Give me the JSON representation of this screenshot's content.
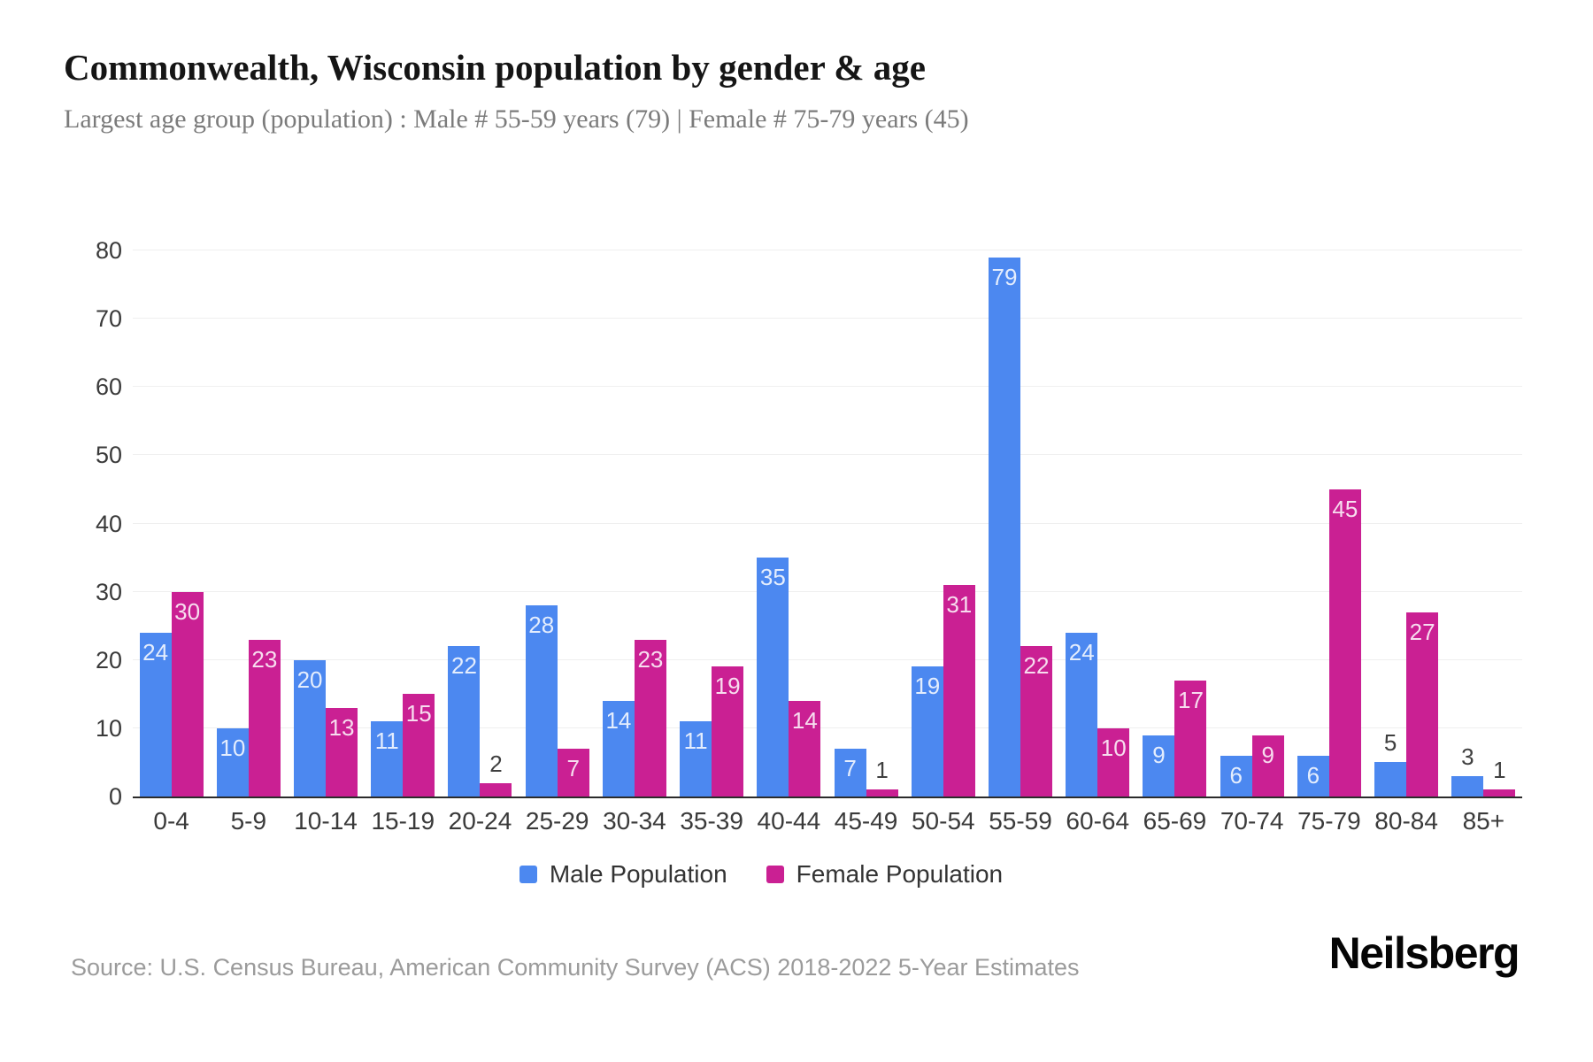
{
  "header": {
    "title": "Commonwealth, Wisconsin population by gender & age",
    "subtitle": "Largest age group (population) : Male # 55-59 years (79) | Female # 75-79 years (45)"
  },
  "chart_data": {
    "type": "bar",
    "title": "Commonwealth, Wisconsin population by gender & age",
    "categories": [
      "0-4",
      "5-9",
      "10-14",
      "15-19",
      "20-24",
      "25-29",
      "30-34",
      "35-39",
      "40-44",
      "45-49",
      "50-54",
      "55-59",
      "60-64",
      "65-69",
      "70-74",
      "75-79",
      "80-84",
      "85+"
    ],
    "series": [
      {
        "name": "Male Population",
        "color": "#4c88f0",
        "values": [
          24,
          10,
          20,
          11,
          22,
          28,
          14,
          11,
          35,
          7,
          19,
          79,
          24,
          9,
          6,
          6,
          5,
          3
        ]
      },
      {
        "name": "Female Population",
        "color": "#ca2093",
        "values": [
          30,
          23,
          13,
          15,
          2,
          7,
          23,
          19,
          14,
          1,
          31,
          22,
          10,
          17,
          9,
          45,
          27,
          1
        ]
      }
    ],
    "xlabel": "",
    "ylabel": "",
    "ylim": [
      0,
      80
    ],
    "yticks": [
      0,
      10,
      20,
      30,
      40,
      50,
      60,
      70,
      80
    ],
    "grid": true,
    "legend_position": "bottom",
    "bar_labels": true,
    "bar_label_inside_min": 6
  },
  "colors": {
    "male": "#4c88f0",
    "female": "#ca2093",
    "grid": "#efefef",
    "axis_line": "#2b2b2b",
    "tick_text": "#3a3a3a"
  },
  "footer": {
    "source": "Source: U.S. Census Bureau, American Community Survey (ACS) 2018-2022 5-Year Estimates",
    "brand": "Neilsberg"
  }
}
